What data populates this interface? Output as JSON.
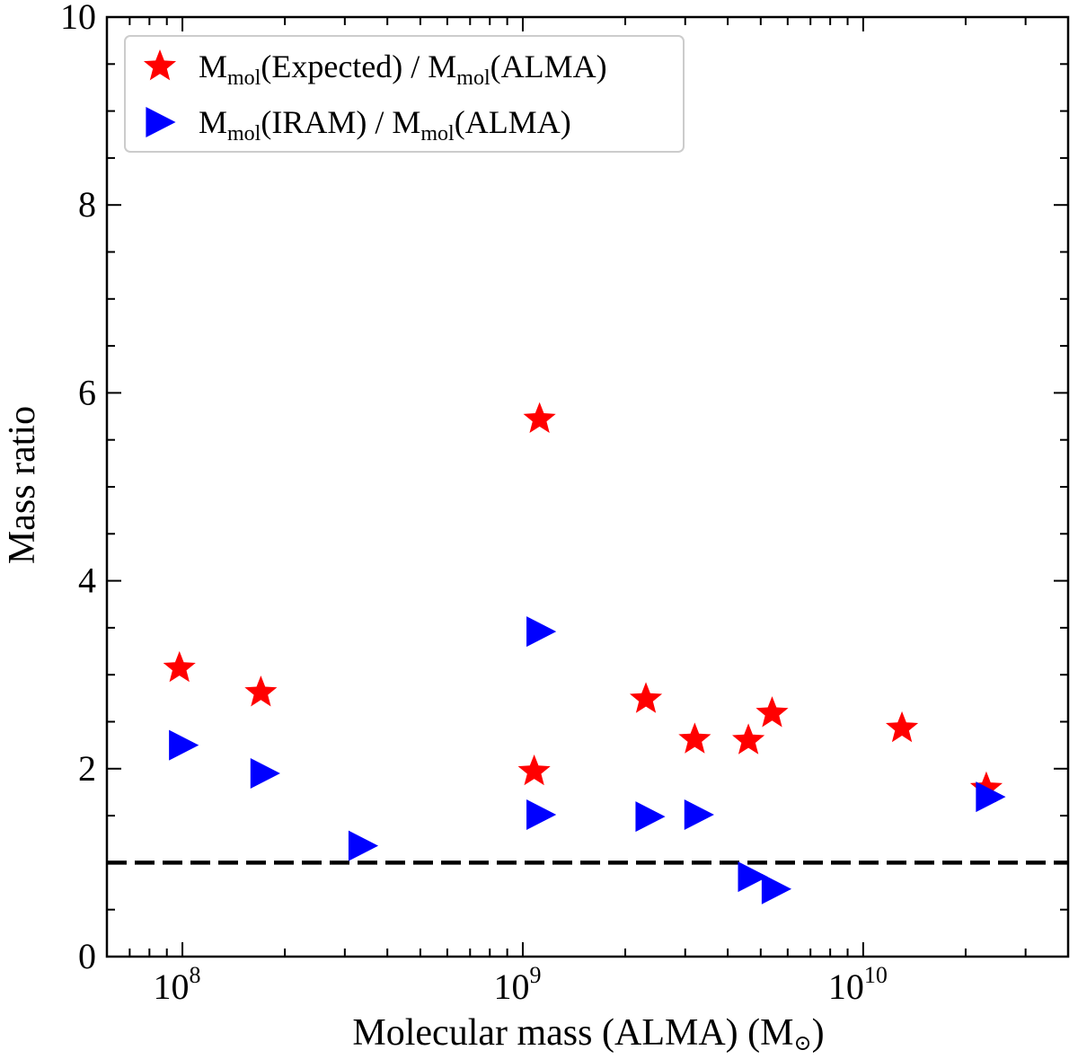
{
  "chart_data": {
    "type": "scatter",
    "title": "",
    "xlabel": "Molecular mass (ALMA) (M",
    "xlabel_unit_symbol": "⊙",
    "xlabel_close": ")",
    "ylabel": "Mass ratio",
    "xscale": "log",
    "xlim": [
      60000000,
      40000000000
    ],
    "ylim": [
      0,
      10
    ],
    "y_ticks": [
      0,
      2,
      4,
      6,
      8,
      10
    ],
    "y_tick_labels": [
      "0",
      "2",
      "4",
      "6",
      "8",
      "10"
    ],
    "x_major_ticks": [
      100000000,
      1000000000,
      10000000000
    ],
    "x_tick_base": "10",
    "x_tick_exponents": [
      "8",
      "9",
      "10"
    ],
    "reference_line": {
      "y": 1,
      "style": "dashed",
      "color": "#000000"
    },
    "legend_position": "top-left",
    "series": [
      {
        "name": "expected",
        "label_pre": "M",
        "label_sub": "mol",
        "label_mid": "(Expected) / M",
        "label_sub2": "mol",
        "label_post": "(ALMA)",
        "marker": "star",
        "color": "#ff0000",
        "x": [
          98000000,
          170000000,
          1080000000,
          1120000000,
          2300000000,
          3200000000,
          4600000000,
          5400000000,
          13000000000,
          23000000000
        ],
        "y": [
          3.07,
          2.81,
          1.97,
          5.72,
          2.74,
          2.31,
          2.3,
          2.59,
          2.43,
          1.79
        ]
      },
      {
        "name": "iram",
        "label_pre": "M",
        "label_sub": "mol",
        "label_mid": "(IRAM) / M",
        "label_sub2": "mol",
        "label_post": "(ALMA)",
        "marker": "triangle-right",
        "color": "#0000ff",
        "x": [
          98000000,
          170000000,
          330000000,
          1100000000,
          1100000000,
          2300000000,
          3200000000,
          4600000000,
          5400000000,
          23000000000
        ],
        "y": [
          2.25,
          1.95,
          1.18,
          3.46,
          1.51,
          1.49,
          1.51,
          0.85,
          0.72,
          1.7
        ]
      }
    ]
  }
}
